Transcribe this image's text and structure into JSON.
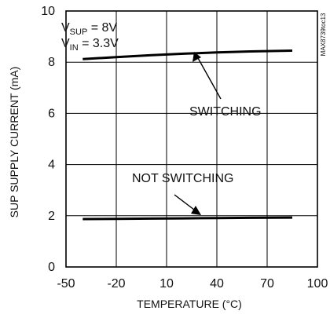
{
  "chart_data": {
    "type": "line",
    "xlabel": "TEMPERATURE (°C)",
    "ylabel": "SUP SUPPLY CURRENT (mA)",
    "xlim": [
      -50,
      100
    ],
    "ylim": [
      0,
      10
    ],
    "xticks": [
      -50,
      -20,
      10,
      40,
      70,
      100
    ],
    "yticks": [
      0,
      2,
      4,
      6,
      8,
      10
    ],
    "grid": true,
    "series": [
      {
        "name": "SWITCHING",
        "x": [
          -40,
          -20,
          0,
          20,
          40,
          60,
          85
        ],
        "y": [
          8.12,
          8.2,
          8.27,
          8.33,
          8.38,
          8.42,
          8.45
        ]
      },
      {
        "name": "NOT SWITCHING",
        "x": [
          -40,
          -20,
          0,
          20,
          40,
          60,
          85
        ],
        "y": [
          1.87,
          1.88,
          1.89,
          1.9,
          1.91,
          1.92,
          1.93
        ]
      }
    ],
    "annotations": {
      "vsup_main": "V",
      "vsup_sub": "SUP",
      "vsup_value": " = 8V",
      "vin_main": "V",
      "vin_sub": "IN",
      "vin_value": " = 3.3V",
      "switching": "SWITCHING",
      "not_switching": "NOT SWITCHING"
    },
    "figure_id": "MAX8739toc13"
  }
}
